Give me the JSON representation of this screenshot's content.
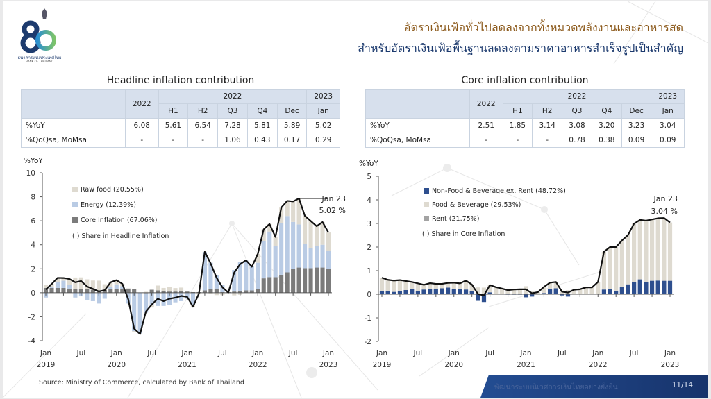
{
  "logo": {
    "number": "80",
    "name_th": "ธนาคารแห่งประเทศไทย",
    "name_en": "BANK OF THAILAND"
  },
  "header": {
    "title_line1": "อัตราเงินเฟ้อทั่วไปลดลงจากทั้งหมวดพลังงานและอาหารสด",
    "title_line2": "สำหรับอัตราเงินเฟ้อพื้นฐานลดลงตามราคาอาหารสำเร็จรูปเป็นสำคัญ"
  },
  "tables": [
    {
      "title": "Headline inflation contribution",
      "col_year": "2022",
      "group_2022": "2022",
      "group_2023": "2023",
      "cols": [
        "H1",
        "H2",
        "Q3",
        "Q4",
        "Dec",
        "Jan"
      ],
      "rows": [
        {
          "label": "%YoY",
          "values": [
            "6.08",
            "5.61",
            "6.54",
            "7.28",
            "5.81",
            "5.89",
            "5.02"
          ]
        },
        {
          "label": "%QoQsa, MoMsa",
          "values": [
            "-",
            "-",
            "-",
            "1.06",
            "0.43",
            "0.17",
            "0.29"
          ]
        }
      ]
    },
    {
      "title": "Core inflation contribution",
      "col_year": "2022",
      "group_2022": "2022",
      "group_2023": "2023",
      "cols": [
        "H1",
        "H2",
        "Q3",
        "Q4",
        "Dec",
        "Jan"
      ],
      "rows": [
        {
          "label": "%YoY",
          "values": [
            "2.51",
            "1.85",
            "3.14",
            "3.08",
            "3.20",
            "3.23",
            "3.04"
          ]
        },
        {
          "label": "%QoQsa, MoMsa",
          "values": [
            "-",
            "-",
            "-",
            "0.78",
            "0.38",
            "0.09",
            "0.09"
          ]
        }
      ]
    }
  ],
  "chart_data": [
    {
      "type": "bar",
      "stacked": true,
      "ylabel": "%YoY",
      "ylim": [
        -4,
        10
      ],
      "yticks": [
        10,
        8,
        6,
        4,
        2,
        0,
        -2,
        -4
      ],
      "x_start": "Jan 2019",
      "x_end": "Jan 2023",
      "months": 49,
      "x_tick_labels": [
        {
          "i": 0,
          "m": "Jan",
          "y": "2019"
        },
        {
          "i": 6,
          "m": "Jul",
          "y": ""
        },
        {
          "i": 12,
          "m": "Jan",
          "y": "2020"
        },
        {
          "i": 18,
          "m": "Jul",
          "y": ""
        },
        {
          "i": 24,
          "m": "Jan",
          "y": "2021"
        },
        {
          "i": 30,
          "m": "Jul",
          "y": ""
        },
        {
          "i": 36,
          "m": "Jan",
          "y": "2022"
        },
        {
          "i": 42,
          "m": "Jul",
          "y": ""
        },
        {
          "i": 48,
          "m": "Jan",
          "y": "2023"
        }
      ],
      "legend_note": "( ) Share in Headline Inflation",
      "annotation": {
        "line1": "Jan 23",
        "line2": "5.02 %"
      },
      "series": [
        {
          "name": "Raw food (20.55%)",
          "kind": "bar",
          "color": "#dedad0",
          "values": "residual"
        },
        {
          "name": "Energy (12.39%)",
          "kind": "bar",
          "color": "#b9cbe4",
          "values": [
            -0.4,
            0.1,
            0.5,
            0.6,
            0.3,
            -0.4,
            -0.3,
            -0.6,
            -0.7,
            -0.9,
            -0.5,
            0.2,
            0.4,
            0.2,
            -0.9,
            -3.2,
            -3.4,
            -1.6,
            -1.0,
            -1.1,
            -1.1,
            -1.0,
            -0.8,
            -0.7,
            -0.5,
            -1.0,
            0.0,
            3.2,
            2.2,
            1.1,
            0.6,
            0.0,
            1.8,
            2.4,
            2.5,
            2.0,
            2.2,
            3.1,
            3.8,
            2.6,
            4.3,
            4.7,
            3.9,
            3.6,
            2.0,
            1.7,
            1.8,
            1.9,
            1.5
          ]
        },
        {
          "name": "Core Inflation (67.06%)",
          "kind": "bar",
          "color": "#7b7b7b",
          "values": [
            0.4,
            0.4,
            0.4,
            0.4,
            0.35,
            0.3,
            0.3,
            0.3,
            0.25,
            0.2,
            0.25,
            0.3,
            0.3,
            0.35,
            0.35,
            0.3,
            0.0,
            -0.05,
            0.25,
            0.2,
            0.15,
            0.1,
            0.1,
            0.15,
            0.1,
            0.05,
            0.05,
            0.2,
            0.3,
            0.35,
            0.05,
            0.05,
            0.1,
            0.15,
            0.2,
            0.2,
            0.3,
            1.2,
            1.3,
            1.3,
            1.5,
            1.7,
            2.0,
            2.1,
            2.05,
            2.05,
            2.1,
            2.1,
            2.0
          ]
        },
        {
          "name": "Headline",
          "kind": "line",
          "color": "#111111",
          "values": [
            0.27,
            0.73,
            1.24,
            1.23,
            1.15,
            0.87,
            0.98,
            0.52,
            0.32,
            0.11,
            0.21,
            0.87,
            1.05,
            0.74,
            -0.54,
            -2.99,
            -3.44,
            -1.57,
            -0.98,
            -0.5,
            -0.7,
            -0.5,
            -0.41,
            -0.27,
            -0.34,
            -1.17,
            -0.08,
            3.41,
            2.44,
            1.25,
            0.45,
            0.02,
            1.68,
            2.38,
            2.71,
            2.17,
            3.23,
            5.28,
            5.73,
            4.65,
            7.1,
            7.66,
            7.61,
            7.86,
            6.41,
            5.98,
            5.55,
            5.89,
            5.02
          ]
        }
      ]
    },
    {
      "type": "bar",
      "stacked": true,
      "ylabel": "%YoY",
      "ylim": [
        -2,
        5
      ],
      "yticks": [
        5,
        4,
        3,
        2,
        1,
        0,
        -1,
        -2
      ],
      "x_start": "Jan 2019",
      "x_end": "Jan 2023",
      "months": 49,
      "x_tick_labels": [
        {
          "i": 0,
          "m": "Jan",
          "y": "2019"
        },
        {
          "i": 6,
          "m": "Jul",
          "y": ""
        },
        {
          "i": 12,
          "m": "Jan",
          "y": "2020"
        },
        {
          "i": 18,
          "m": "Jul",
          "y": ""
        },
        {
          "i": 24,
          "m": "Jan",
          "y": "2021"
        },
        {
          "i": 30,
          "m": "Jul",
          "y": ""
        },
        {
          "i": 36,
          "m": "Jan",
          "y": "2022"
        },
        {
          "i": 42,
          "m": "Jul",
          "y": ""
        },
        {
          "i": 48,
          "m": "Jan",
          "y": "2023"
        }
      ],
      "legend_note": "( ) Share in Core Inflation",
      "annotation": {
        "line1": "Jan 23",
        "line2": "3.04 %"
      },
      "series": [
        {
          "name": "Non-Food & Beverage ex. Rent (48.72%)",
          "kind": "bar",
          "color": "#2e4f8e",
          "values": [
            0.12,
            0.12,
            0.1,
            0.13,
            0.18,
            0.22,
            0.13,
            0.2,
            0.22,
            0.24,
            0.25,
            0.28,
            0.23,
            0.23,
            0.2,
            0.12,
            -0.28,
            -0.33,
            0.08,
            0,
            0,
            -0.02,
            -0.02,
            -0.02,
            -0.13,
            -0.1,
            0.02,
            0.05,
            0.22,
            0.25,
            -0.05,
            -0.1,
            0,
            0,
            0,
            0,
            0.02,
            0.2,
            0.22,
            0.15,
            0.32,
            0.42,
            0.5,
            0.63,
            0.52,
            0.57,
            0.58,
            0.57,
            0.57
          ]
        },
        {
          "name": "Food & Beverage (29.53%)",
          "kind": "bar",
          "color": "#dedad0",
          "values": "residual"
        },
        {
          "name": "Rent (21.75%)",
          "kind": "bar",
          "color": "#a3a3a3",
          "values": [
            0,
            0,
            0,
            0,
            0,
            0,
            0,
            0,
            0,
            0,
            0,
            0,
            0,
            0,
            0,
            0,
            0,
            0,
            0,
            0,
            0,
            0,
            0,
            0,
            0,
            0,
            0,
            0,
            0,
            0,
            0,
            0,
            0,
            0,
            0,
            0,
            0,
            0,
            0,
            0,
            0,
            0,
            0,
            0,
            0,
            0,
            0,
            0,
            0
          ]
        },
        {
          "name": "Core",
          "kind": "line",
          "color": "#111111",
          "values": [
            0.7,
            0.61,
            0.58,
            0.6,
            0.56,
            0.52,
            0.46,
            0.4,
            0.47,
            0.44,
            0.44,
            0.48,
            0.49,
            0.46,
            0.58,
            0.41,
            0.01,
            -0.05,
            0.39,
            0.3,
            0.24,
            0.17,
            0.2,
            0.21,
            0.21,
            0.04,
            0.09,
            0.31,
            0.49,
            0.52,
            0.11,
            0.07,
            0.19,
            0.21,
            0.29,
            0.29,
            0.52,
            1.8,
            2.0,
            2.0,
            2.28,
            2.51,
            2.99,
            3.15,
            3.12,
            3.17,
            3.22,
            3.23,
            3.04
          ]
        }
      ]
    }
  ],
  "source": "Source: Ministry of Commerce, calculated by Bank of Thailand",
  "footer": {
    "tagline": "พัฒนาระบบนิเวศการเงินไทยอย่างยั่งยืน",
    "page": "11/14"
  }
}
